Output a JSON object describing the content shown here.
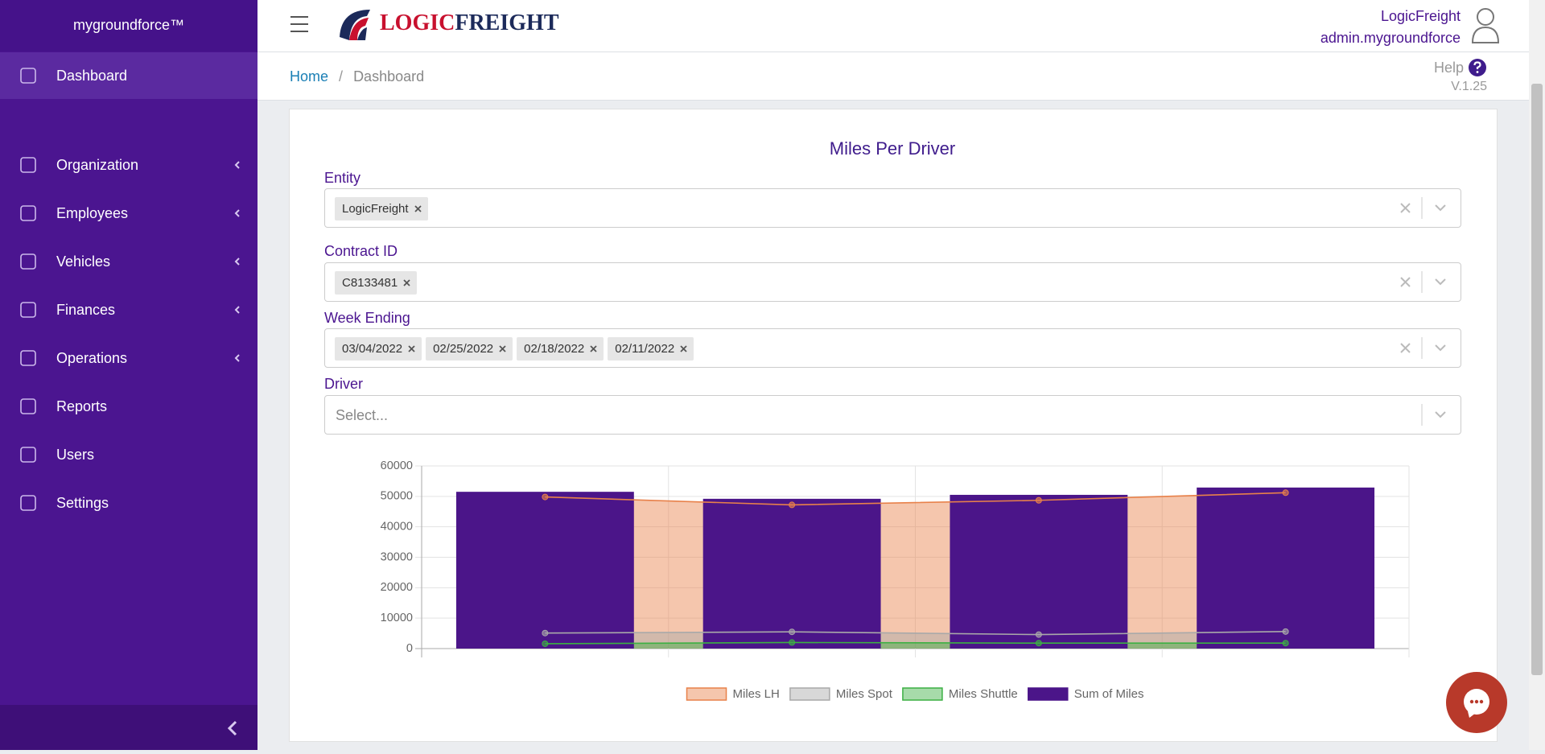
{
  "sidebar": {
    "brand": "mygroundforce™",
    "items": [
      {
        "label": "Dashboard",
        "active": true,
        "submenu": false
      },
      {
        "label": "Organization",
        "active": false,
        "submenu": true
      },
      {
        "label": "Employees",
        "active": false,
        "submenu": true
      },
      {
        "label": "Vehicles",
        "active": false,
        "submenu": true
      },
      {
        "label": "Finances",
        "active": false,
        "submenu": true
      },
      {
        "label": "Operations",
        "active": false,
        "submenu": true
      },
      {
        "label": "Reports",
        "active": false,
        "submenu": false
      },
      {
        "label": "Users",
        "active": false,
        "submenu": false
      },
      {
        "label": "Settings",
        "active": false,
        "submenu": false
      }
    ]
  },
  "header": {
    "logo": [
      "LOGIC",
      "FREIGHT"
    ],
    "company": "LogicFreight",
    "user": "admin.mygroundforce"
  },
  "breadcrumb": [
    "Home",
    "Dashboard"
  ],
  "help": "Help",
  "version": "V.1.25",
  "form": {
    "title": "Miles Per Driver",
    "fields": [
      {
        "label": "Entity",
        "tags": [
          "LogicFreight"
        ]
      },
      {
        "label": "Contract ID",
        "tags": [
          "C8133481"
        ]
      },
      {
        "label": "Week Ending",
        "tags": [
          "03/04/2022",
          "02/25/2022",
          "02/18/2022",
          "02/11/2022"
        ]
      },
      {
        "label": "Driver",
        "placeholder": "Select..."
      }
    ]
  },
  "chart_data": {
    "type": "bar",
    "categories": [
      null,
      null,
      null,
      null
    ],
    "ylim": [
      0,
      60000
    ],
    "yticks": [
      0,
      10000,
      20000,
      30000,
      40000,
      50000,
      60000
    ],
    "grid": true,
    "legend": "bottom",
    "series": [
      {
        "name": "Miles LH",
        "type": "area",
        "color": "#e8814a",
        "values": [
          49800,
          47200,
          48700,
          51200
        ]
      },
      {
        "name": "Miles Spot",
        "type": "area",
        "color": "#a9a9a9",
        "values": [
          5100,
          5500,
          4600,
          5600
        ]
      },
      {
        "name": "Miles Shuttle",
        "type": "area",
        "color": "#3cb043",
        "values": [
          1600,
          2000,
          1800,
          1800
        ]
      },
      {
        "name": "Sum of Miles",
        "type": "bar",
        "color": "#4b1589",
        "values": [
          51500,
          49200,
          50500,
          52900
        ]
      }
    ]
  }
}
